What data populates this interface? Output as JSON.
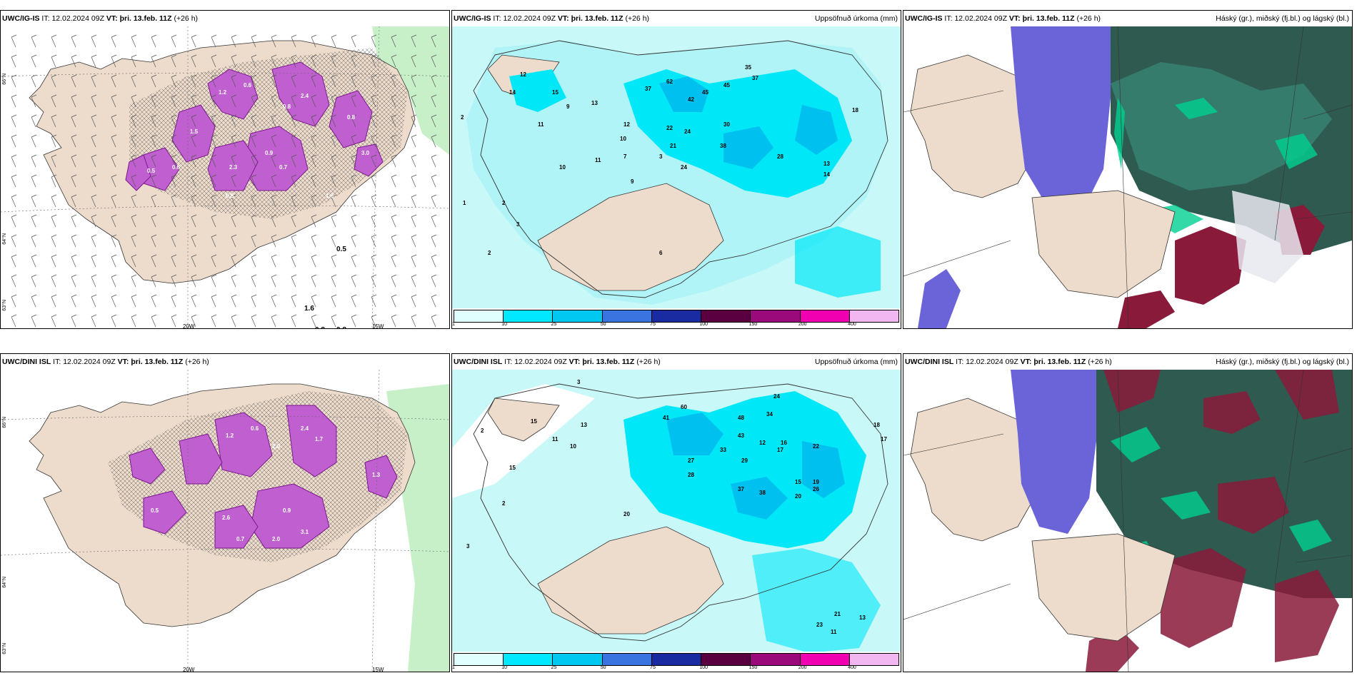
{
  "panels": {
    "p1": {
      "model": "UWC/IG-IS",
      "it_label": "IT:",
      "it": "12.02.2024 09Z",
      "vt_label": "VT:",
      "vt": "þri. 13.feb. 11Z",
      "lead": "(+26 h)",
      "right": ""
    },
    "p2": {
      "model": "UWC/IG-IS",
      "it_label": "IT:",
      "it": "12.02.2024 09Z",
      "vt_label": "VT:",
      "vt": "þri. 13.feb. 11Z",
      "lead": "(+26 h)",
      "right": "Uppsöfnuð úrkoma (mm)"
    },
    "p3": {
      "model": "UWC/IG-IS",
      "it_label": "IT:",
      "it": "12.02.2024 09Z",
      "vt_label": "VT:",
      "vt": "þri. 13.feb. 11Z",
      "lead": "(+26 h)",
      "right": "Háský (gr.), miðský (fj.bl.) og lágský (bl.)"
    },
    "p4": {
      "model": "UWC/DINI ISL",
      "it_label": "IT:",
      "it": "12.02.2024 09Z",
      "vt_label": "VT:",
      "vt": "þri. 13.feb. 11Z",
      "lead": "(+26 h)",
      "right": ""
    },
    "p5": {
      "model": "UWC/DINI ISL",
      "it_label": "IT:",
      "it": "12.02.2024 09Z",
      "vt_label": "VT:",
      "vt": "þri. 13.feb. 11Z",
      "lead": "(+26 h)",
      "right": "Uppsöfnuð úrkoma (mm)"
    },
    "p6": {
      "model": "UWC/DINI ISL",
      "it_label": "IT:",
      "it": "12.02.2024 09Z",
      "vt_label": "VT:",
      "vt": "þri. 13.feb. 11Z",
      "lead": "(+26 h)",
      "right": "Háský (gr.), miðský (fj.bl.) og lágský (bl.)"
    }
  },
  "axis": {
    "lat66": "66°N",
    "lat64": "64°N",
    "lat63": "63°N",
    "lon20": "20W",
    "lon15": "15W"
  },
  "colorbar": {
    "labels": [
      "1",
      "10",
      "25",
      "50",
      "75",
      "100",
      "150",
      "200",
      "400"
    ],
    "colors": [
      "#e0ffff",
      "#00e8ff",
      "#00c8f0",
      "#3a74e0",
      "#1a2aa0",
      "#5a0040",
      "#9a0a7a",
      "#f000b0",
      "#f2b6f0"
    ]
  },
  "panel1_values": [
    "1.2",
    "0.6",
    "2.4",
    "0.8",
    "0.9",
    "1.5",
    "2.3",
    "0.7",
    "1.6",
    "0.5",
    "0.8",
    "0.8",
    "0.6",
    "3.0"
  ],
  "panel2_values": [
    "2",
    "12",
    "14",
    "15",
    "9",
    "11",
    "13",
    "37",
    "62",
    "42",
    "45",
    "35",
    "37",
    "45",
    "30",
    "24",
    "22",
    "21",
    "38",
    "28",
    "12",
    "10",
    "7",
    "3",
    "24",
    "9",
    "18",
    "11",
    "13",
    "14",
    "10",
    "2",
    "3",
    "6",
    "2",
    "1"
  ],
  "panel4_values": [
    "1.2",
    "0.6",
    "2.0",
    "2.4",
    "1.7",
    "0.9",
    "1.3",
    "2.6",
    "3.1",
    "2.0",
    "0.5",
    "0.7"
  ],
  "panel5_values": [
    "2",
    "3",
    "15",
    "20",
    "13",
    "11",
    "10",
    "41",
    "60",
    "48",
    "43",
    "34",
    "24",
    "37",
    "22",
    "33",
    "29",
    "17",
    "12",
    "16",
    "27",
    "38",
    "20",
    "26",
    "15",
    "19",
    "28",
    "18",
    "17",
    "2",
    "3",
    "15",
    "23",
    "21",
    "13",
    "11"
  ]
}
